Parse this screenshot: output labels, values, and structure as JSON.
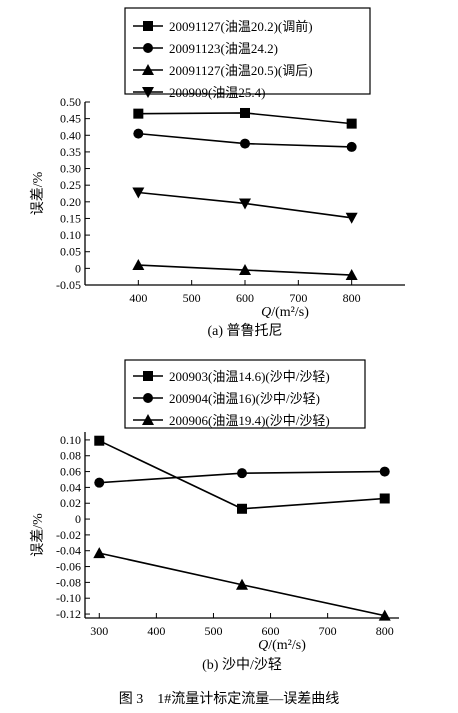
{
  "chart_data": [
    {
      "type": "line",
      "subtitle": "(a) 普鲁托尼",
      "xlabel": "Q/(m²/s)",
      "ylabel": "误差/%",
      "xlim": [
        300,
        900
      ],
      "ylim": [
        -0.05,
        0.5
      ],
      "x_ticks": [
        "400",
        "500",
        "600",
        "700",
        "800"
      ],
      "y_ticks": [
        "0.50",
        "0.45",
        "0.40",
        "0.35",
        "0.30",
        "0.25",
        "0.20",
        "0.15",
        "0.10",
        "0.05",
        "0",
        "-0.05"
      ],
      "x": [
        400,
        600,
        800
      ],
      "series": [
        {
          "name": "20091127(油温20.2)(调前)",
          "marker": "square",
          "values": [
            0.465,
            0.467,
            0.435
          ]
        },
        {
          "name": "20091123(油温24.2)",
          "marker": "circle",
          "values": [
            0.405,
            0.375,
            0.365
          ]
        },
        {
          "name": "20091127(油温20.5)(调后)",
          "marker": "triangle-up",
          "values": [
            0.01,
            -0.005,
            -0.02
          ]
        },
        {
          "name": "200909(油温25.4)",
          "marker": "triangle-down",
          "values": [
            0.228,
            0.195,
            0.152
          ]
        }
      ],
      "legend": "top",
      "grid": false
    },
    {
      "type": "line",
      "subtitle": "(b) 沙中/沙轻",
      "xlabel": "Q/(m²/s)",
      "ylabel": "误差/%",
      "xlim": [
        275,
        825
      ],
      "ylim": [
        -0.125,
        0.11
      ],
      "x_ticks": [
        "300",
        "400",
        "500",
        "600",
        "700",
        "800"
      ],
      "y_ticks": [
        "0.10",
        "0.08",
        "0.06",
        "0.04",
        "0.02",
        "0",
        "-0.02",
        "-0.04",
        "-0.06",
        "-0.08",
        "-0.10",
        "-0.12"
      ],
      "x": [
        300,
        550,
        800
      ],
      "series": [
        {
          "name": "200903(油温14.6)(沙中/沙轻)",
          "marker": "square",
          "values": [
            0.099,
            0.013,
            0.026
          ]
        },
        {
          "name": "200904(油温16)(沙中/沙轻)",
          "marker": "circle",
          "values": [
            0.046,
            0.058,
            0.06
          ]
        },
        {
          "name": "200906(油温19.4)(沙中/沙轻)",
          "marker": "triangle-up",
          "values": [
            -0.043,
            -0.083,
            -0.122
          ]
        }
      ],
      "legend": "top",
      "grid": false
    }
  ],
  "caption": "图 3　1#流量计标定流量—误差曲线"
}
